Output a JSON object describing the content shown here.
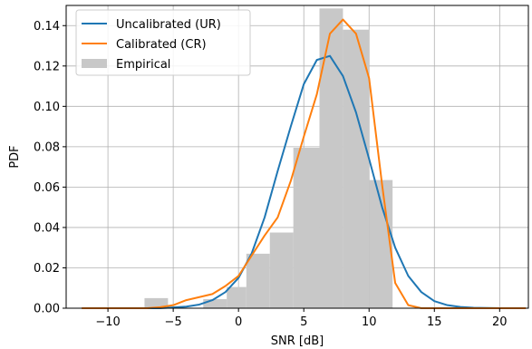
{
  "chart_data": {
    "type": "line",
    "xlabel": "SNR [dB]",
    "ylabel": "PDF",
    "xlim": [
      -13.2,
      22.2
    ],
    "ylim": [
      0,
      0.15
    ],
    "xticks": [
      -10,
      -5,
      0,
      5,
      10,
      15,
      20
    ],
    "xtick_labels": [
      "−10",
      "−5",
      "0",
      "5",
      "10",
      "15",
      "20"
    ],
    "yticks": [
      0,
      0.02,
      0.04,
      0.06,
      0.08,
      0.1,
      0.12,
      0.14
    ],
    "ytick_labels": [
      "0.00",
      "0.02",
      "0.04",
      "0.06",
      "0.08",
      "0.10",
      "0.12",
      "0.14"
    ],
    "grid": true,
    "legend_position": "top-left",
    "colors": {
      "uncalibrated": "#1f77b4",
      "calibrated": "#ff7f0e",
      "empirical": "#c8c8c8"
    },
    "histogram": {
      "name": "Empirical",
      "bins": [
        {
          "x0": -7.2,
          "x1": -5.4,
          "value": 0.005
        },
        {
          "x0": -2.7,
          "x1": -0.9,
          "value": 0.0045
        },
        {
          "x0": -0.9,
          "x1": 0.6,
          "value": 0.0105
        },
        {
          "x0": 0.6,
          "x1": 2.4,
          "value": 0.027
        },
        {
          "x0": 2.4,
          "x1": 4.2,
          "value": 0.0375
        },
        {
          "x0": 4.2,
          "x1": 6.2,
          "value": 0.0795
        },
        {
          "x0": 6.2,
          "x1": 8.0,
          "value": 0.1485
        },
        {
          "x0": 8.0,
          "x1": 10.0,
          "value": 0.138
        },
        {
          "x0": 10.0,
          "x1": 11.8,
          "value": 0.0635
        }
      ]
    },
    "series": [
      {
        "name": "Uncalibrated (UR)",
        "x": [
          -12,
          -10,
          -8,
          -6,
          -4,
          -3,
          -2,
          -1,
          0,
          1,
          2,
          3,
          4,
          5,
          6,
          7,
          8,
          9,
          10,
          11,
          12,
          13,
          14,
          15,
          16,
          17,
          18,
          20,
          22
        ],
        "y": [
          0,
          0,
          0,
          0,
          0.0008,
          0.0018,
          0.004,
          0.008,
          0.015,
          0.027,
          0.045,
          0.068,
          0.09,
          0.111,
          0.123,
          0.125,
          0.115,
          0.097,
          0.074,
          0.05,
          0.03,
          0.016,
          0.008,
          0.0035,
          0.0015,
          0.0006,
          0.0002,
          0,
          0
        ]
      },
      {
        "name": "Calibrated (CR)",
        "x": [
          -12,
          -7,
          -6,
          -5,
          -4,
          -3,
          -2,
          -1,
          0,
          1,
          2,
          3,
          4,
          5,
          6,
          7,
          8,
          9,
          10,
          11,
          12,
          13,
          14,
          15,
          18,
          22
        ],
        "y": [
          0,
          0,
          0.0005,
          0.0015,
          0.004,
          0.0055,
          0.007,
          0.011,
          0.016,
          0.026,
          0.036,
          0.045,
          0.063,
          0.085,
          0.106,
          0.136,
          0.143,
          0.136,
          0.114,
          0.061,
          0.0125,
          0.0015,
          0,
          0,
          0,
          0
        ]
      }
    ]
  }
}
